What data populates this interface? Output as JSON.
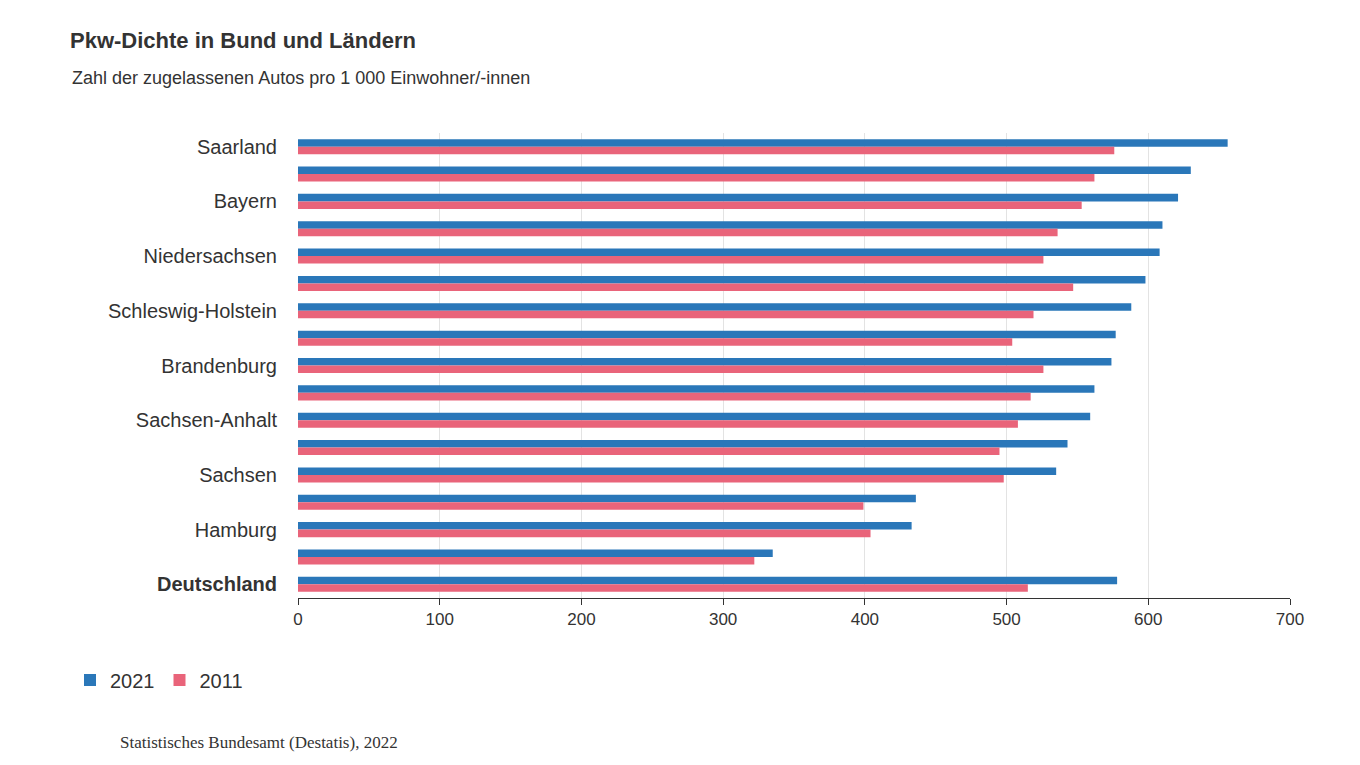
{
  "chart_data": {
    "type": "bar",
    "orientation": "horizontal",
    "title": "Pkw-Dichte in Bund und Ländern",
    "subtitle": "Zahl der zugelassenen Autos pro 1 000 Einwohner/-innen",
    "source": "Statistisches Bundesamt (Destatis), 2022",
    "categories": [
      "Saarland",
      null,
      "Bayern",
      null,
      "Niedersachsen",
      null,
      "Schleswig-Holstein",
      null,
      "Brandenburg",
      null,
      "Sachsen-Anhalt",
      null,
      "Sachsen",
      null,
      "Hamburg",
      null,
      "Deutschland"
    ],
    "series": [
      {
        "name": "2021",
        "color": "#2a77b9",
        "values": [
          656,
          630,
          621,
          610,
          608,
          598,
          588,
          577,
          574,
          562,
          559,
          543,
          535,
          436,
          433,
          335,
          578
        ]
      },
      {
        "name": "2011",
        "color": "#e9647a",
        "values": [
          576,
          562,
          553,
          536,
          526,
          547,
          519,
          504,
          526,
          517,
          508,
          495,
          498,
          399,
          404,
          322,
          515
        ]
      }
    ],
    "xlim": [
      0,
      700
    ],
    "xticks": [
      0,
      100,
      200,
      300,
      400,
      500,
      600,
      700
    ],
    "grid": true,
    "legend": "bottom left"
  }
}
